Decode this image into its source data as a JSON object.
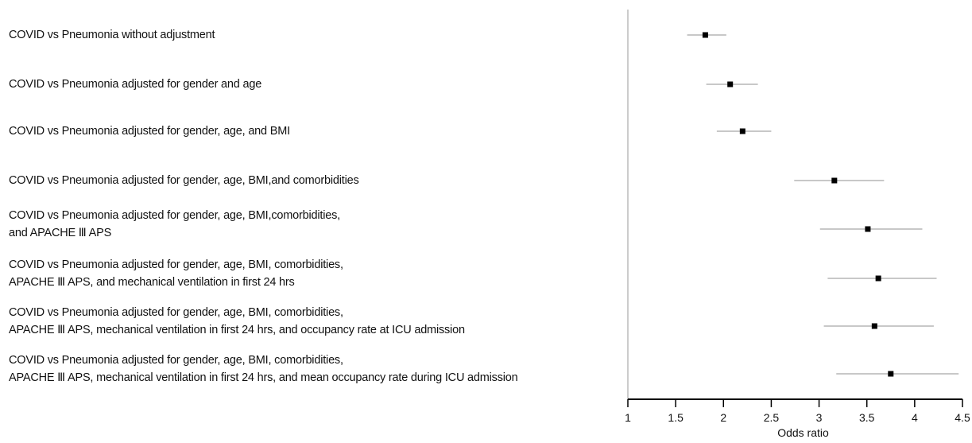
{
  "chart_data": {
    "type": "forest",
    "xlabel": "Odds ratio",
    "xlim": [
      1,
      4.5
    ],
    "xticks": [
      "1",
      "1.5",
      "2",
      "2.5",
      "3",
      "3.5",
      "4",
      "4.5"
    ],
    "rows": [
      {
        "label": [
          "COVID vs Pneumonia without adjustment"
        ],
        "or": 1.81,
        "lo": 1.62,
        "hi": 2.03
      },
      {
        "label": [
          "COVID vs Pneumonia adjusted for gender and age"
        ],
        "or": 2.07,
        "lo": 1.82,
        "hi": 2.36
      },
      {
        "label": [
          "COVID vs Pneumonia adjusted for gender, age, and BMI"
        ],
        "or": 2.2,
        "lo": 1.93,
        "hi": 2.5
      },
      {
        "label": [
          "COVID vs Pneumonia adjusted for gender, age, BMI,and comorbidities"
        ],
        "or": 3.16,
        "lo": 2.74,
        "hi": 3.68
      },
      {
        "label": [
          "COVID vs Pneumonia adjusted for gender, age, BMI,comorbidities,",
          "and APACHE Ⅲ APS"
        ],
        "or": 3.51,
        "lo": 3.01,
        "hi": 4.08
      },
      {
        "label": [
          "COVID vs Pneumonia adjusted for gender, age, BMI, comorbidities,",
          "APACHE Ⅲ APS, and mechanical ventilation in first 24 hrs"
        ],
        "or": 3.62,
        "lo": 3.09,
        "hi": 4.23
      },
      {
        "label": [
          "COVID vs Pneumonia adjusted for gender, age, BMI, comorbidities,",
          "APACHE Ⅲ APS, mechanical ventilation in first 24 hrs, and occupancy rate at ICU admission"
        ],
        "or": 3.58,
        "lo": 3.05,
        "hi": 4.2
      },
      {
        "label": [
          "COVID vs Pneumonia adjusted for gender, age, BMI, comorbidities,",
          "APACHE Ⅲ APS, mechanical ventilation in first 24 hrs, and mean occupancy rate during ICU admission"
        ],
        "or": 3.75,
        "lo": 3.18,
        "hi": 4.46
      }
    ]
  }
}
